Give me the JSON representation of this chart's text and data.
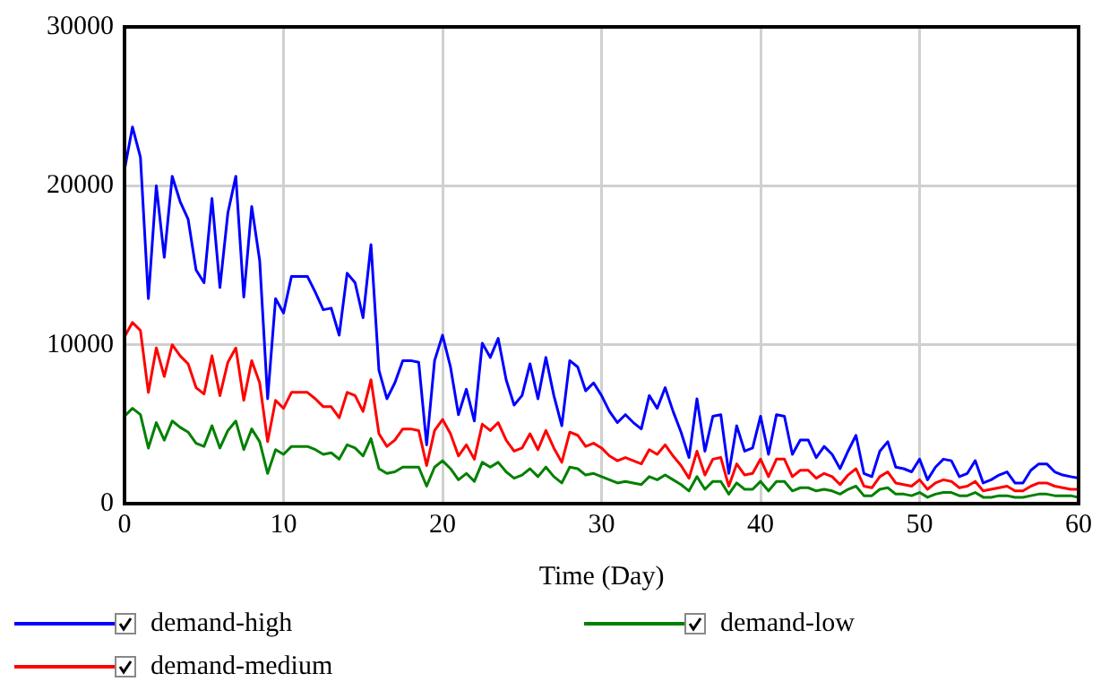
{
  "chart_data": {
    "type": "line",
    "xlabel": "Time (Day)",
    "xlim": [
      0,
      60
    ],
    "xticks": [
      0,
      10,
      20,
      30,
      40,
      50,
      60
    ],
    "ylim": [
      0,
      30000
    ],
    "yticks": [
      0,
      10000,
      20000,
      30000
    ],
    "grid": true,
    "legend": "bottom",
    "marker": "none",
    "line_style": "solid",
    "x": [
      0,
      0.5,
      1,
      1.5,
      2,
      2.5,
      3,
      3.5,
      4,
      4.5,
      5,
      5.5,
      6,
      6.5,
      7,
      7.5,
      8,
      8.5,
      9,
      9.5,
      10,
      10.5,
      11,
      11.5,
      12,
      12.5,
      13,
      13.5,
      14,
      14.5,
      15,
      15.5,
      16,
      16.5,
      17,
      17.5,
      18,
      18.5,
      19,
      19.5,
      20,
      20.5,
      21,
      21.5,
      22,
      22.5,
      23,
      23.5,
      24,
      24.5,
      25,
      25.5,
      26,
      26.5,
      27,
      27.5,
      28,
      28.5,
      29,
      29.5,
      30,
      30.5,
      31,
      31.5,
      32,
      32.5,
      33,
      33.5,
      34,
      34.5,
      35,
      35.5,
      36,
      36.5,
      37,
      37.5,
      38,
      38.5,
      39,
      39.5,
      40,
      40.5,
      41,
      41.5,
      42,
      42.5,
      43,
      43.5,
      44,
      44.5,
      45,
      45.5,
      46,
      46.5,
      47,
      47.5,
      48,
      48.5,
      49,
      49.5,
      50,
      50.5,
      51,
      51.5,
      52,
      52.5,
      53,
      53.5,
      54,
      54.5,
      55,
      55.5,
      56,
      56.5,
      57,
      57.5,
      58,
      58.5,
      59,
      59.5,
      60
    ],
    "series": [
      {
        "name": "demand-high",
        "color": "#0000ff",
        "values": [
          21000,
          23700,
          21800,
          12900,
          20000,
          15500,
          20600,
          19000,
          17900,
          14700,
          13900,
          19200,
          13600,
          18300,
          20600,
          13000,
          18700,
          15300,
          6600,
          12900,
          12000,
          14300,
          14300,
          14300,
          13300,
          12200,
          12300,
          10600,
          14500,
          13900,
          11700,
          16300,
          8400,
          6600,
          7600,
          9000,
          9000,
          8900,
          3700,
          9000,
          10600,
          8600,
          5600,
          7200,
          5200,
          10100,
          9200,
          10400,
          7800,
          6200,
          6800,
          8800,
          6600,
          9200,
          6800,
          4900,
          9000,
          8600,
          7100,
          7600,
          6800,
          5800,
          5100,
          5600,
          5100,
          4700,
          6800,
          6000,
          7300,
          5800,
          4500,
          2900,
          6600,
          3300,
          5500,
          5600,
          1900,
          4900,
          3300,
          3500,
          5500,
          3100,
          5600,
          5500,
          3100,
          4000,
          4000,
          2900,
          3600,
          3100,
          2200,
          3300,
          4300,
          1900,
          1700,
          3300,
          3900,
          2300,
          2200,
          2000,
          2800,
          1500,
          2300,
          2800,
          2700,
          1700,
          1900,
          2700,
          1300,
          1500,
          1800,
          2000,
          1300,
          1300,
          2100,
          2500,
          2500,
          2000,
          1800,
          1700,
          1600
        ]
      },
      {
        "name": "demand-low",
        "color": "#008000",
        "values": [
          5500,
          6000,
          5600,
          3500,
          5100,
          4000,
          5200,
          4800,
          4500,
          3800,
          3600,
          4900,
          3500,
          4600,
          5200,
          3400,
          4700,
          3900,
          1900,
          3400,
          3100,
          3600,
          3600,
          3600,
          3400,
          3100,
          3200,
          2800,
          3700,
          3500,
          3000,
          4100,
          2200,
          1900,
          2000,
          2300,
          2300,
          2300,
          1100,
          2300,
          2700,
          2200,
          1500,
          1900,
          1400,
          2600,
          2300,
          2600,
          2000,
          1600,
          1800,
          2200,
          1700,
          2300,
          1700,
          1300,
          2300,
          2200,
          1800,
          1900,
          1700,
          1500,
          1300,
          1400,
          1300,
          1200,
          1700,
          1500,
          1800,
          1500,
          1200,
          800,
          1700,
          900,
          1400,
          1400,
          600,
          1300,
          900,
          900,
          1400,
          800,
          1400,
          1400,
          800,
          1000,
          1000,
          800,
          900,
          800,
          600,
          900,
          1100,
          500,
          500,
          900,
          1000,
          600,
          600,
          500,
          700,
          400,
          600,
          700,
          700,
          500,
          500,
          700,
          400,
          400,
          500,
          500,
          400,
          400,
          500,
          600,
          600,
          500,
          500,
          500,
          400
        ]
      },
      {
        "name": "demand-medium",
        "color": "#ff0000",
        "values": [
          10500,
          11400,
          10900,
          7000,
          9800,
          8000,
          10000,
          9300,
          8800,
          7300,
          6900,
          9300,
          6800,
          8900,
          9800,
          6500,
          9000,
          7600,
          3900,
          6500,
          6000,
          7000,
          7000,
          7000,
          6600,
          6100,
          6100,
          5400,
          7000,
          6800,
          5800,
          7800,
          4400,
          3600,
          4000,
          4700,
          4700,
          4600,
          2400,
          4600,
          5300,
          4400,
          3000,
          3700,
          2800,
          5000,
          4600,
          5100,
          4000,
          3300,
          3500,
          4400,
          3400,
          4600,
          3500,
          2600,
          4500,
          4300,
          3600,
          3800,
          3500,
          3000,
          2700,
          2900,
          2700,
          2500,
          3400,
          3100,
          3700,
          3000,
          2400,
          1600,
          3300,
          1800,
          2800,
          2900,
          1100,
          2500,
          1800,
          1900,
          2800,
          1700,
          2800,
          2800,
          1700,
          2100,
          2100,
          1600,
          1900,
          1700,
          1200,
          1800,
          2200,
          1100,
          1000,
          1700,
          2000,
          1300,
          1200,
          1100,
          1500,
          900,
          1300,
          1500,
          1400,
          1000,
          1100,
          1400,
          800,
          900,
          1000,
          1100,
          800,
          800,
          1100,
          1300,
          1300,
          1100,
          1000,
          900,
          900
        ]
      }
    ]
  }
}
